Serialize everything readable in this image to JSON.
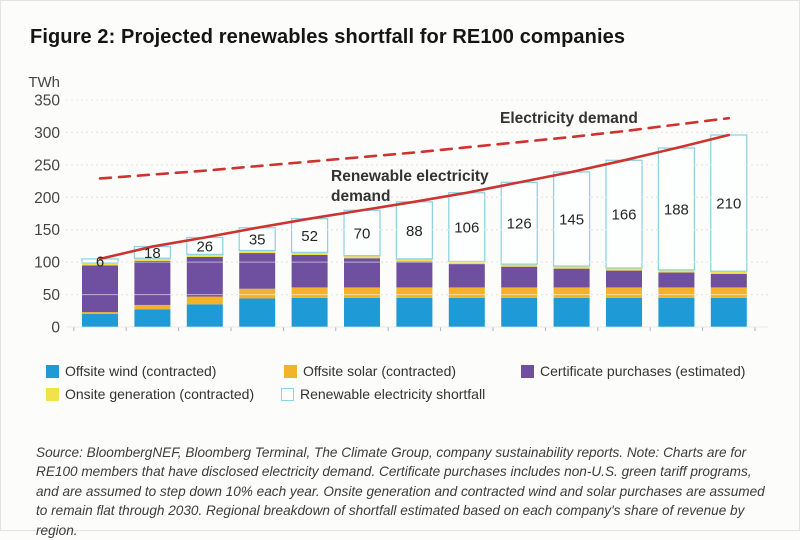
{
  "figure": {
    "title": "Figure 2: Projected renewables shortfall for RE100 companies"
  },
  "annotations": {
    "electricity_demand_label": "Electricity demand",
    "renewable_demand_label_line1": "Renewable electricity",
    "renewable_demand_label_line2": "demand"
  },
  "legend": {
    "items": [
      {
        "label": "Offsite wind (contracted)",
        "color": "#1E9AD6",
        "border": "#1E9AD6"
      },
      {
        "label": "Offsite solar (contracted)",
        "color": "#F2B32B",
        "border": "#F2B32B"
      },
      {
        "label": "Certificate purchases (estimated)",
        "color": "#6F4F9F",
        "border": "#6F4F9F"
      },
      {
        "label": "Onsite generation (contracted)",
        "color": "#F2E24A",
        "border": "#F2E24A"
      },
      {
        "label": "Renewable electricity shortfall",
        "color": "#FFFFFF",
        "border": "#8FD3E3"
      }
    ]
  },
  "source_note": "Source: BloombergNEF, Bloomberg Terminal, The Climate Group, company sustainability reports. Note: Charts are for RE100 members that have disclosed electricity demand. Certificate purchases includes non-U.S. green tariff programs, and are assumed to step down 10% each year. Onsite generation and contracted wind and solar purchases are assumed to remain flat through 2030. Regional breakdown of shortfall estimated based on each company's share of revenue by region.",
  "chart_data": {
    "type": "bar",
    "stacked": true,
    "title": "Projected renewables shortfall for RE100 companies",
    "ylabel": "TWh",
    "ylim": [
      0,
      350
    ],
    "y_ticks": [
      0,
      50,
      100,
      150,
      200,
      250,
      300,
      350
    ],
    "grid": true,
    "legend_position": "bottom",
    "x_axis": {
      "labels_visible": false,
      "periods": 13
    },
    "series": [
      {
        "name": "Offsite wind (contracted)",
        "color": "#1E9AD6",
        "values": [
          20,
          27,
          35,
          44,
          45,
          45,
          45,
          45,
          45,
          45,
          45,
          45,
          45
        ]
      },
      {
        "name": "Offsite solar (contracted)",
        "color": "#F2B32B",
        "values": [
          3,
          7,
          12,
          15,
          16,
          16,
          16,
          16,
          16,
          16,
          16,
          16,
          16
        ]
      },
      {
        "name": "Certificate purchases (estimated)",
        "color": "#6F4F9F",
        "values": [
          72,
          68,
          61,
          55,
          50,
          45,
          40,
          36,
          32,
          29,
          26,
          23,
          21
        ]
      },
      {
        "name": "Onsite generation (contracted)",
        "color": "#F2E24A",
        "values": [
          4,
          4,
          4,
          4,
          4,
          4,
          4,
          4,
          4,
          4,
          4,
          4,
          4
        ]
      },
      {
        "name": "Renewable electricity shortfall",
        "color": "#FDFEFE",
        "border": "#8FD3E3",
        "labeled": true,
        "values": [
          6,
          18,
          26,
          35,
          52,
          70,
          88,
          106,
          126,
          145,
          166,
          188,
          210
        ]
      }
    ],
    "lines": [
      {
        "name": "Renewable electricity demand",
        "style": "solid",
        "color": "#CD3430",
        "values": [
          105,
          124,
          138,
          153,
          167,
          180,
          193,
          207,
          223,
          239,
          257,
          276,
          296
        ]
      },
      {
        "name": "Electricity demand",
        "style": "dashed",
        "color": "#CD3430",
        "values": [
          229,
          235,
          241,
          248,
          255,
          262,
          269,
          277,
          285,
          293,
          302,
          312,
          322
        ]
      }
    ]
  }
}
